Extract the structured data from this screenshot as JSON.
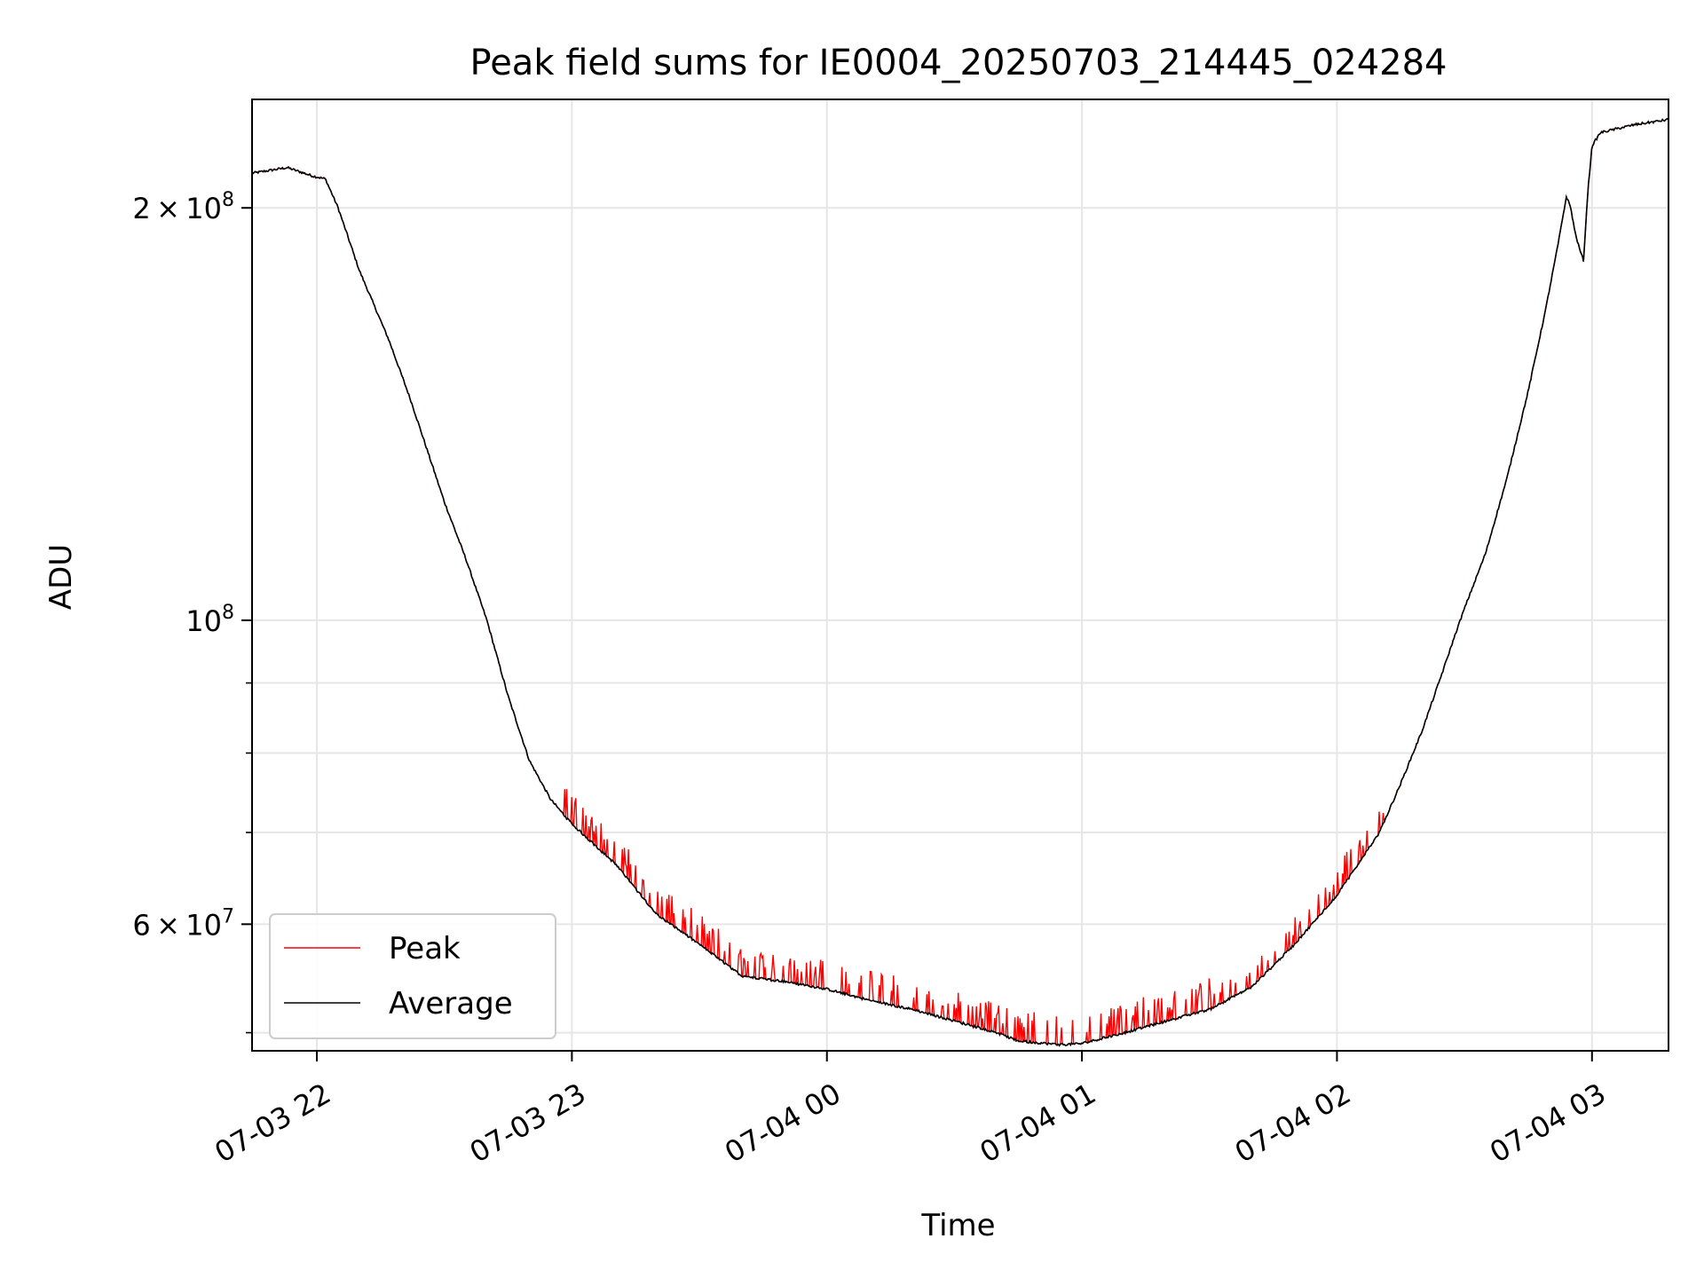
{
  "chart_data": {
    "type": "line",
    "title": "Peak field sums for IE0004_20250703_214445_024284",
    "xlabel": "Time",
    "ylabel": "ADU",
    "yscale": "log",
    "ylim": [
      48500000,
      240000000
    ],
    "xlim": [
      "2025-07-03 21:44:45",
      "2025-07-04 03:18:00"
    ],
    "grid": true,
    "legend_position": "lower-left",
    "x_ticks": [
      {
        "t": "2025-07-03 22:00:00",
        "label": "07-03 22"
      },
      {
        "t": "2025-07-03 23:00:00",
        "label": "07-03 23"
      },
      {
        "t": "2025-07-04 00:00:00",
        "label": "07-04 00"
      },
      {
        "t": "2025-07-04 01:00:00",
        "label": "07-04 01"
      },
      {
        "t": "2025-07-04 02:00:00",
        "label": "07-04 02"
      },
      {
        "t": "2025-07-04 03:00:00",
        "label": "07-04 03"
      }
    ],
    "y_major_ticks": [
      {
        "v": 200000000,
        "mant": "2",
        "exp": "8"
      },
      {
        "v": 100000000,
        "mant": "",
        "exp": "8"
      },
      {
        "v": 60000000,
        "mant": "6",
        "exp": "7"
      }
    ],
    "y_minor_ticks": [
      50000000,
      70000000,
      80000000,
      90000000
    ],
    "series": [
      {
        "name": "Average",
        "color": "#000000",
        "points": [
          [
            "2025-07-03 21:44:45",
            212000000
          ],
          [
            "2025-07-03 21:53:00",
            214000000
          ],
          [
            "2025-07-03 21:59:00",
            211000000
          ],
          [
            "2025-07-03 22:02:00",
            210000000
          ],
          [
            "2025-07-03 22:05:00",
            200000000
          ],
          [
            "2025-07-03 22:10:00",
            180000000
          ],
          [
            "2025-07-03 22:17:00",
            160000000
          ],
          [
            "2025-07-03 22:22:00",
            145000000
          ],
          [
            "2025-07-03 22:26:00",
            133000000
          ],
          [
            "2025-07-03 22:30:00",
            122000000
          ],
          [
            "2025-07-03 22:35:00",
            111000000
          ],
          [
            "2025-07-03 22:40:00",
            100000000
          ],
          [
            "2025-07-03 22:45:00",
            88000000
          ],
          [
            "2025-07-03 22:50:00",
            79000000
          ],
          [
            "2025-07-03 22:55:00",
            74000000
          ],
          [
            "2025-07-03 23:00:00",
            71000000
          ],
          [
            "2025-07-03 23:10:00",
            66500000
          ],
          [
            "2025-07-03 23:20:00",
            61000000
          ],
          [
            "2025-07-03 23:30:00",
            58000000
          ],
          [
            "2025-07-03 23:40:00",
            55000000
          ],
          [
            "2025-07-03 23:50:00",
            54500000
          ],
          [
            "2025-07-04 00:00:00",
            53800000
          ],
          [
            "2025-07-04 00:10:00",
            52800000
          ],
          [
            "2025-07-04 00:20:00",
            52000000
          ],
          [
            "2025-07-04 00:30:00",
            51000000
          ],
          [
            "2025-07-04 00:40:00",
            50000000
          ],
          [
            "2025-07-04 00:45:00",
            49300000
          ],
          [
            "2025-07-04 00:55:00",
            49000000
          ],
          [
            "2025-07-04 01:00:00",
            49100000
          ],
          [
            "2025-07-04 01:10:00",
            50000000
          ],
          [
            "2025-07-04 01:20:00",
            51000000
          ],
          [
            "2025-07-04 01:30:00",
            52000000
          ],
          [
            "2025-07-04 01:40:00",
            54000000
          ],
          [
            "2025-07-04 01:50:00",
            58000000
          ],
          [
            "2025-07-04 02:00:00",
            63000000
          ],
          [
            "2025-07-04 02:10:00",
            70000000
          ],
          [
            "2025-07-04 02:15:00",
            76000000
          ],
          [
            "2025-07-04 02:20:00",
            83000000
          ],
          [
            "2025-07-04 02:25:00",
            92000000
          ],
          [
            "2025-07-04 02:28:00",
            98000000
          ],
          [
            "2025-07-04 02:30:00",
            102000000
          ],
          [
            "2025-07-04 02:35:00",
            112000000
          ],
          [
            "2025-07-04 02:40:00",
            127000000
          ],
          [
            "2025-07-04 02:45:00",
            147000000
          ],
          [
            "2025-07-04 02:49:00",
            168000000
          ],
          [
            "2025-07-04 02:52:00",
            188000000
          ],
          [
            "2025-07-04 02:54:00",
            204000000
          ],
          [
            "2025-07-04 02:55:00",
            200000000
          ],
          [
            "2025-07-04 02:56:00",
            192000000
          ],
          [
            "2025-07-04 02:57:00",
            187000000
          ],
          [
            "2025-07-04 02:58:00",
            183000000
          ],
          [
            "2025-07-04 02:59:00",
            205000000
          ],
          [
            "2025-07-04 03:00:00",
            222000000
          ],
          [
            "2025-07-04 03:02:00",
            227000000
          ],
          [
            "2025-07-04 03:10:00",
            230000000
          ],
          [
            "2025-07-04 03:18:00",
            232000000
          ]
        ]
      },
      {
        "name": "Peak",
        "color": "#ff0000",
        "note_visible_behavior": "follows Average with frequent short upward spikes between 07-03 23:00 and 07-04 02:10",
        "spike_window": [
          "2025-07-03 22:58:00",
          "2025-07-04 02:12:00"
        ],
        "spike_fraction_of_value": 0.035
      }
    ]
  }
}
